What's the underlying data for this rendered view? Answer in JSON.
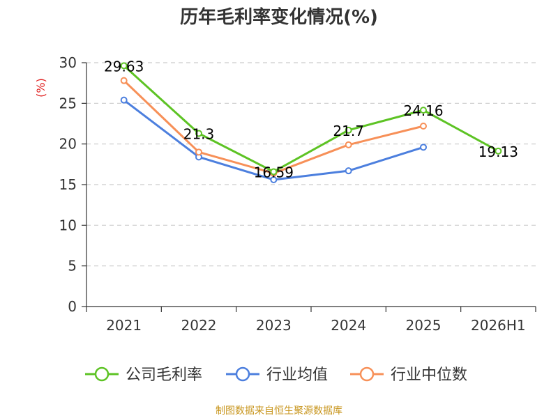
{
  "chart_data": {
    "type": "line",
    "title": "历年毛利率变化情况(%)",
    "ylabel": "(%)",
    "ylim": [
      0,
      30
    ],
    "yticks": [
      0,
      5,
      10,
      15,
      20,
      25,
      30
    ],
    "grid": true,
    "legend_position": "bottom",
    "categories": [
      "2021",
      "2022",
      "2023",
      "2024",
      "2025",
      "2026H1"
    ],
    "series": [
      {
        "name": "公司毛利率",
        "color": "#5dc324",
        "values": [
          29.63,
          21.3,
          16.59,
          21.7,
          24.16,
          19.13
        ],
        "labels": [
          "29.63",
          "21.3",
          "16.59",
          "21.7",
          "24.16",
          "19.13"
        ]
      },
      {
        "name": "行业均值",
        "color": "#4c7fde",
        "values": [
          25.4,
          18.4,
          15.6,
          16.7,
          19.6,
          null
        ]
      },
      {
        "name": "行业中位数",
        "color": "#f79058",
        "values": [
          27.8,
          19.0,
          16.4,
          19.9,
          22.2,
          null
        ]
      }
    ]
  },
  "footer": {
    "source": "制图数据来自恒生聚源数据库"
  }
}
